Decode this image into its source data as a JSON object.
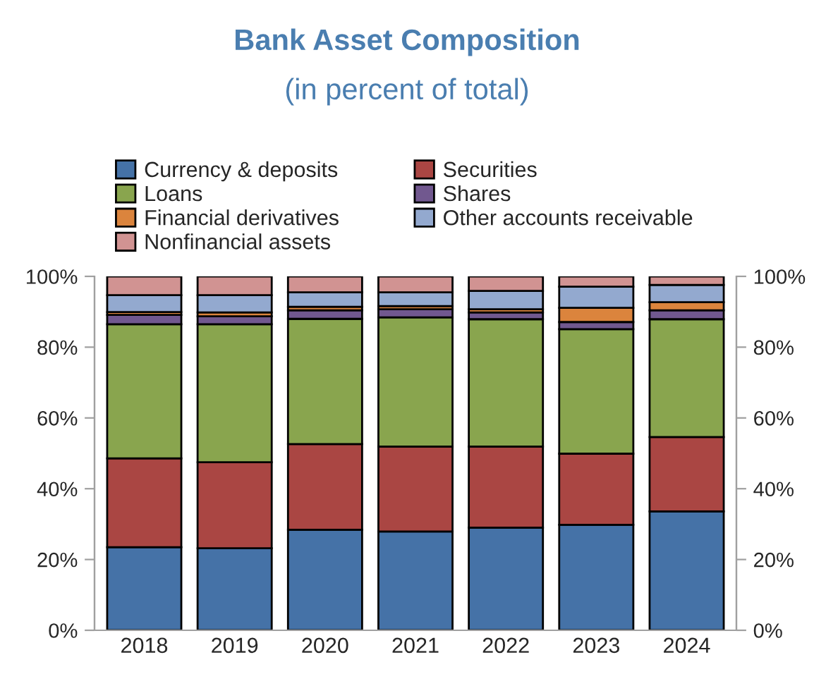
{
  "chart_data": {
    "type": "bar",
    "stacked": true,
    "title": "Bank Asset Composition",
    "subtitle": "(in percent of total)",
    "categories": [
      "2018",
      "2019",
      "2020",
      "2021",
      "2022",
      "2023",
      "2024"
    ],
    "series": [
      {
        "name": "Currency & deposits",
        "color": "#4572a7",
        "values": [
          23.5,
          23.2,
          28.4,
          27.9,
          29.0,
          29.8,
          33.6
        ]
      },
      {
        "name": "Securities",
        "color": "#aa4643",
        "values": [
          25.1,
          24.3,
          24.2,
          24.0,
          22.9,
          20.1,
          21.0
        ]
      },
      {
        "name": "Loans",
        "color": "#89a54e",
        "values": [
          37.9,
          39.0,
          35.4,
          36.5,
          36.0,
          35.2,
          33.3
        ]
      },
      {
        "name": "Shares",
        "color": "#71588f",
        "values": [
          2.6,
          2.2,
          2.4,
          2.3,
          1.9,
          2.0,
          2.5
        ]
      },
      {
        "name": "Financial derivatives",
        "color": "#db843d",
        "values": [
          0.8,
          1.1,
          1.0,
          0.9,
          0.9,
          4.0,
          2.3
        ]
      },
      {
        "name": "Other accounts receivable",
        "color": "#93a9cf",
        "values": [
          4.8,
          4.9,
          4.1,
          3.9,
          5.2,
          6.0,
          4.9
        ]
      },
      {
        "name": "Nonfinancial assets",
        "color": "#d19392",
        "values": [
          5.3,
          5.3,
          4.5,
          4.5,
          4.1,
          2.9,
          2.4
        ]
      }
    ],
    "ylim": [
      0,
      100
    ],
    "yticks": [
      {
        "value": 0,
        "label": "0%"
      },
      {
        "value": 20,
        "label": "20%"
      },
      {
        "value": 40,
        "label": "40%"
      },
      {
        "value": 60,
        "label": "60%"
      },
      {
        "value": 80,
        "label": "80%"
      },
      {
        "value": 100,
        "label": "100%"
      }
    ],
    "y2lim": [
      0,
      100
    ],
    "y2ticks": [
      {
        "value": 0,
        "label": "0%"
      },
      {
        "value": 20,
        "label": "20%"
      },
      {
        "value": 40,
        "label": "40%"
      },
      {
        "value": 60,
        "label": "60%"
      },
      {
        "value": 80,
        "label": "80%"
      },
      {
        "value": 100,
        "label": "100%"
      }
    ],
    "grid": false,
    "legend": "top"
  }
}
